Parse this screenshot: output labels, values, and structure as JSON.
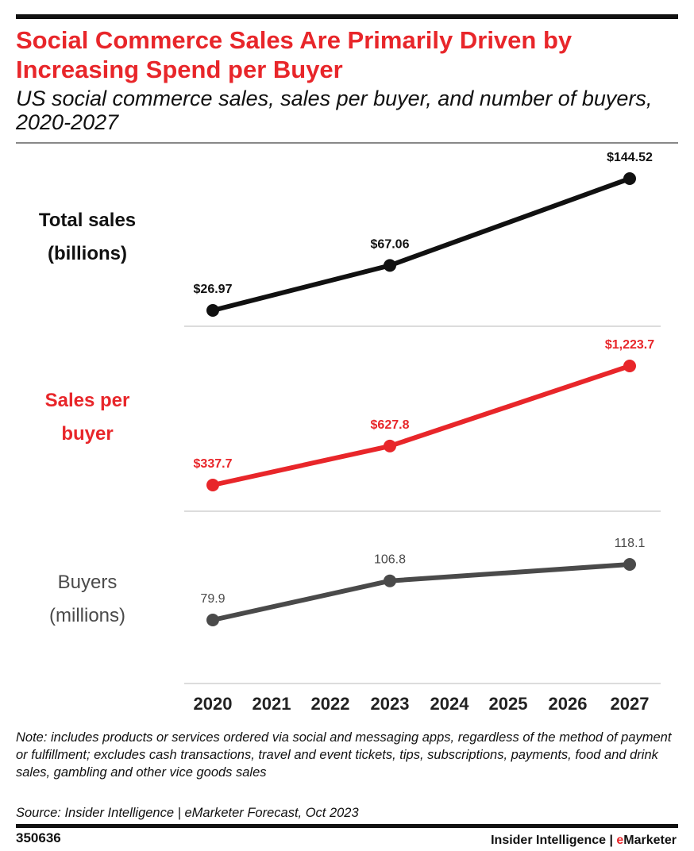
{
  "header": {
    "title": "Social Commerce Sales Are Primarily Driven by Increasing Spend per Buyer",
    "subtitle": "US social commerce sales, sales per buyer, and number of buyers, 2020-2027"
  },
  "chart_data": {
    "type": "line",
    "categories": [
      "2020",
      "2021",
      "2022",
      "2023",
      "2024",
      "2025",
      "2026",
      "2027"
    ],
    "panels": [
      {
        "label_lines": [
          "Total sales",
          "(billions)"
        ],
        "color": "#111111",
        "points": [
          {
            "x": "2020",
            "y": 26.97,
            "label": "$26.97"
          },
          {
            "x": "2023",
            "y": 67.06,
            "label": "$67.06"
          },
          {
            "x": "2027",
            "y": 144.52,
            "label": "$144.52"
          }
        ]
      },
      {
        "label_lines": [
          "Sales per",
          "buyer"
        ],
        "color": "#e8262a",
        "points": [
          {
            "x": "2020",
            "y": 337.7,
            "label": "$337.7"
          },
          {
            "x": "2023",
            "y": 627.8,
            "label": "$627.8"
          },
          {
            "x": "2027",
            "y": 1223.7,
            "label": "$1,223.7"
          }
        ]
      },
      {
        "label_lines": [
          "Buyers",
          "(millions)"
        ],
        "color": "#4a4a4a",
        "points": [
          {
            "x": "2020",
            "y": 79.9,
            "label": "79.9"
          },
          {
            "x": "2023",
            "y": 106.8,
            "label": "106.8"
          },
          {
            "x": "2027",
            "y": 118.1,
            "label": "118.1"
          }
        ]
      }
    ]
  },
  "footer": {
    "note": "Note: includes products or services ordered via social and messaging apps, regardless of the method of payment or fulfillment; excludes cash transactions, travel and event tickets, tips, subscriptions, payments, food and drink sales, gambling and other vice goods sales",
    "source": "Source: Insider Intelligence | eMarketer Forecast, Oct 2023",
    "chart_id": "350636",
    "brand_prefix": "Insider Intelligence | ",
    "brand_accent": "e",
    "brand_suffix": "Marketer"
  }
}
